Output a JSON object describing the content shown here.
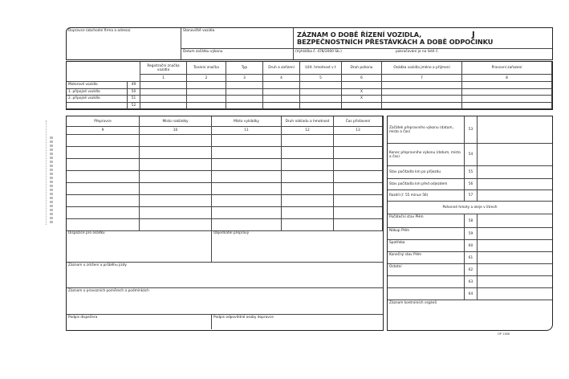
{
  "header": {
    "carrier_label": "Dopravce (obchodní firma a adresa)",
    "vehicle_station_label": "Stanoviště vozidla",
    "start_date_label": "Datum začátku výkonu",
    "title_line1": "ZÁZNAM O DOBĚ ŘÍZENÍ VOZIDLA,",
    "title_line2": "BEZPEČNOSTNÍCH PŘESTÁVKÁCH A DOBĚ ODPOČINKU",
    "title_mark": "J",
    "regulation": "(Vyhláška č. 478/2000 Sb.)",
    "continuation": "pokračování je na listě č."
  },
  "vehicle_table": {
    "columns": [
      {
        "label": "Registrační značka vozidla",
        "num": "1"
      },
      {
        "label": "Tovární značka",
        "num": "2"
      },
      {
        "label": "Typ",
        "num": "3"
      },
      {
        "label": "Druh a zařízení",
        "num": "4"
      },
      {
        "label": "Užit. hmotnost v t",
        "num": "5"
      },
      {
        "label": "Druh pohonu",
        "num": "6"
      },
      {
        "label": "Osádka vozidla jméno a příjmení",
        "num": "7"
      },
      {
        "label": "Pracovní zařazení",
        "num": "8"
      }
    ],
    "rows": [
      {
        "label": "Motorové vozidlo",
        "num": "49",
        "pohon": ""
      },
      {
        "label": "1. přípojné vozidlo",
        "num": "50",
        "pohon": "X"
      },
      {
        "label": "2. přípojné vozidlo",
        "num": "51",
        "pohon": "X"
      },
      {
        "label": "",
        "num": "52",
        "pohon": ""
      }
    ]
  },
  "transport_table": {
    "columns": [
      {
        "label": "Přepravce",
        "num": "9"
      },
      {
        "label": "Místo nakládky",
        "num": "10"
      },
      {
        "label": "Místo vykládky",
        "num": "11"
      },
      {
        "label": "Druh nákladu a hmotnost",
        "num": "12"
      },
      {
        "label": "Čas přistavení",
        "num": "13"
      }
    ]
  },
  "bottom": {
    "dispatch_label": "Dispozice pro osádku",
    "orderer_label": "Objednatel přepravy",
    "delay_label": "Záznam o zdržení a průběhu jízdy",
    "conditions_label": "Záznam o provozních poměrech a podmínkách",
    "dispatcher_sign": "Podpis dispečera",
    "responsible_sign": "Podpis odpovědné osoby dopravce"
  },
  "right_panel": {
    "rows_top": [
      {
        "label": "Začátek přepravního výkonu (datum, místo a čas)",
        "num": "53"
      },
      {
        "label": "Konec přepravního výkonu (datum, místo a čas)",
        "num": "54"
      },
      {
        "label": "Stav počítadla km po příjezdu",
        "num": "55"
      },
      {
        "label": "Stav počítadla km před odjezdem",
        "num": "56"
      },
      {
        "label": "Rozdíl (ř. 55 minus 56)",
        "num": "57"
      }
    ],
    "fuel_header": "Pohonné hmoty a oleje v litrech",
    "rows_fuel": [
      {
        "label": "Počáteční stav PHm",
        "num": "58"
      },
      {
        "label": "Nákup PHm",
        "num": "59"
      },
      {
        "label": "Spotřeba",
        "num": "60"
      },
      {
        "label": "Konečný stav PHm",
        "num": "61"
      },
      {
        "label": "Ostatní",
        "num": "62"
      },
      {
        "label": "",
        "num": "63"
      },
      {
        "label": "",
        "num": "64"
      }
    ],
    "control_label": "Záznam kontrolních orgánů"
  },
  "footer": {
    "code": "OP 1166"
  }
}
